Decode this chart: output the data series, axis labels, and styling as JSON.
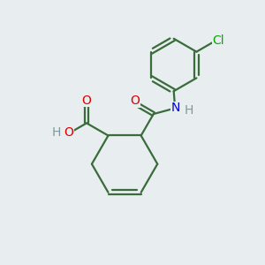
{
  "bg_color": "#e8eef0",
  "bond_color": "#3a6b3a",
  "bond_width": 1.6,
  "dbo": 0.08,
  "O_color": "#dd0000",
  "N_color": "#0000cc",
  "Cl_color": "#00aa00",
  "H_color": "#7a9a9a",
  "font_size": 10,
  "figsize": [
    3.0,
    3.0
  ],
  "dpi": 100,
  "xlim": [
    0,
    10
  ],
  "ylim": [
    0,
    10
  ]
}
